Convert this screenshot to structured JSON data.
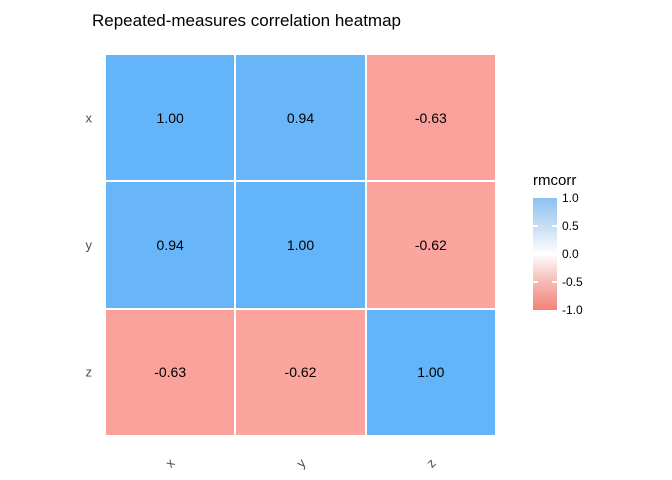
{
  "title": "Repeated-measures correlation heatmap",
  "chart_data": {
    "type": "heatmap",
    "title": "Repeated-measures correlation heatmap",
    "x_categories": [
      "x",
      "y",
      "z"
    ],
    "y_categories": [
      "x",
      "y",
      "z"
    ],
    "values": [
      [
        1.0,
        0.94,
        -0.63
      ],
      [
        0.94,
        1.0,
        -0.62
      ],
      [
        -0.63,
        -0.62,
        1.0
      ]
    ],
    "cell_labels": [
      [
        "1.00",
        "0.94",
        "-0.63"
      ],
      [
        "0.94",
        "1.00",
        "-0.62"
      ],
      [
        "-0.63",
        "-0.62",
        "1.00"
      ]
    ],
    "cell_colors": [
      [
        "#63B4F8",
        "#68B6F8",
        "#FBA19B"
      ],
      [
        "#68B6F8",
        "#63B4F8",
        "#FCA49E"
      ],
      [
        "#FBA19B",
        "#FCA49E",
        "#63B4F8"
      ]
    ],
    "axis_text_color": "#4d4d4d",
    "value_text_color": "#000000",
    "grid": false,
    "legend": {
      "title": "rmcorr",
      "position": "right",
      "range": [
        -1.0,
        1.0
      ],
      "tick_labels": [
        "1.0",
        "0.5",
        "0.0",
        "-0.5",
        "-1.0"
      ],
      "gradient_stops": [
        {
          "pos": 0,
          "color": "#8CC1F0"
        },
        {
          "pos": 25,
          "color": "#C6DDF4"
        },
        {
          "pos": 50,
          "color": "#FFFFFF"
        },
        {
          "pos": 75,
          "color": "#F5BAB5"
        },
        {
          "pos": 100,
          "color": "#F4817A"
        }
      ]
    }
  }
}
